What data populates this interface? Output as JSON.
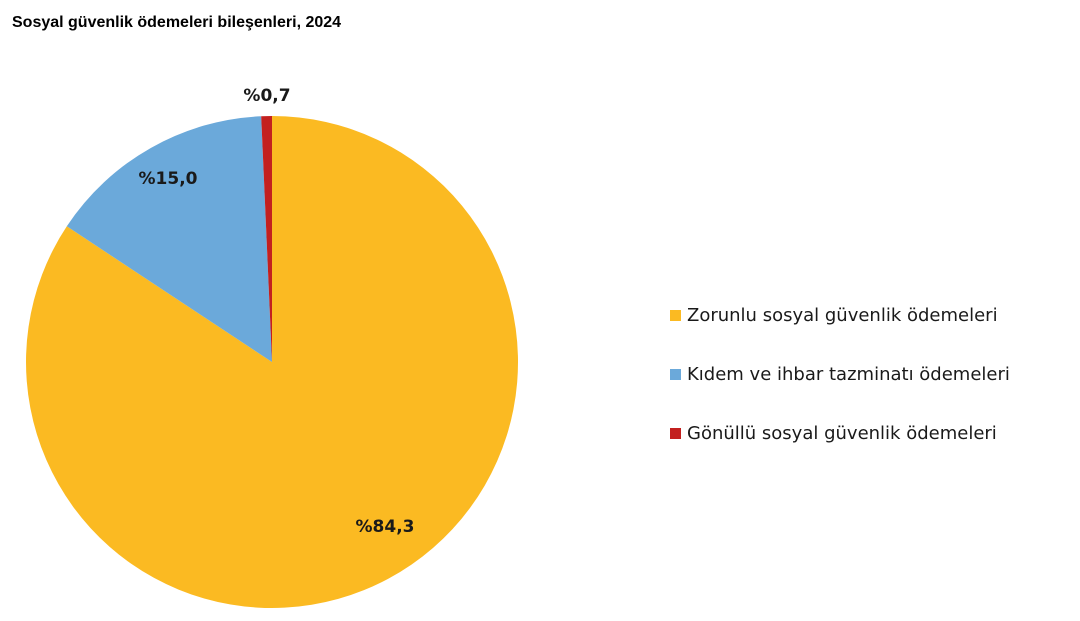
{
  "chart_data": {
    "type": "pie",
    "title": "Sosyal güvenlik ödemeleri bileşenleri, 2024",
    "categories": [
      "Zorunlu sosyal güvenlik ödemeleri",
      "Kıdem ve ihbar tazminatı ödemeleri",
      "Gönüllü sosyal güvenlik ödemeleri"
    ],
    "values": [
      84.3,
      15.0,
      0.7
    ],
    "data_labels": [
      "%84,3",
      "%15,0",
      "%0,7"
    ],
    "colors": [
      "#FBBA22",
      "#6BA9DA",
      "#C3201F"
    ],
    "legend_position": "right",
    "start_angle": "12 o'clock",
    "direction": "clockwise"
  }
}
